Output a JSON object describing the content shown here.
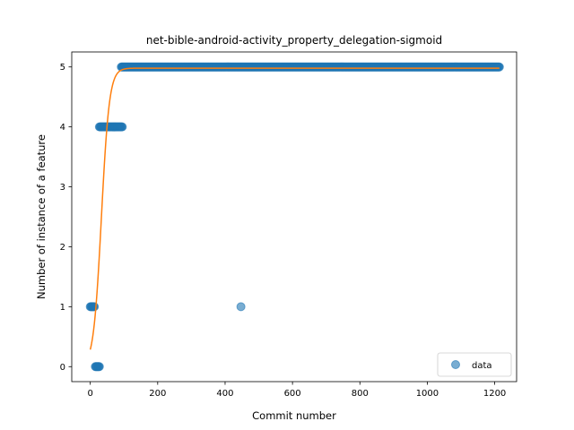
{
  "chart_data": {
    "type": "scatter",
    "title": "net-bible-android-activity_property_delegation-sigmoid",
    "xlabel": "Commit number",
    "ylabel": "Number of instance of a feature",
    "xlim": [
      -55,
      1265
    ],
    "ylim": [
      -0.25,
      5.25
    ],
    "xticks": [
      0,
      200,
      400,
      600,
      800,
      1000,
      1200
    ],
    "yticks": [
      0,
      1,
      2,
      3,
      4,
      5
    ],
    "legend": {
      "position": "bottom-right",
      "entries": [
        {
          "label": "data"
        }
      ]
    },
    "colors": {
      "data": "#1f77b4",
      "fit": "#ff7f0e"
    },
    "series": [
      {
        "name": "data",
        "kind": "scatter",
        "segments": [
          {
            "x_start": 0,
            "x_end": 12,
            "y": 1
          },
          {
            "x_start": 15,
            "x_end": 28,
            "y": 0
          },
          {
            "x_start": 27,
            "x_end": 95,
            "y": 4
          },
          {
            "x_start": 92,
            "x_end": 1215,
            "y": 5
          }
        ],
        "points": [
          {
            "x": 447,
            "y": 1
          }
        ]
      },
      {
        "kind": "line",
        "function": "sigmoid",
        "params": {
          "L": 4.98,
          "k": 0.085,
          "x0": 33
        },
        "x_range": [
          0,
          1215
        ]
      }
    ]
  }
}
